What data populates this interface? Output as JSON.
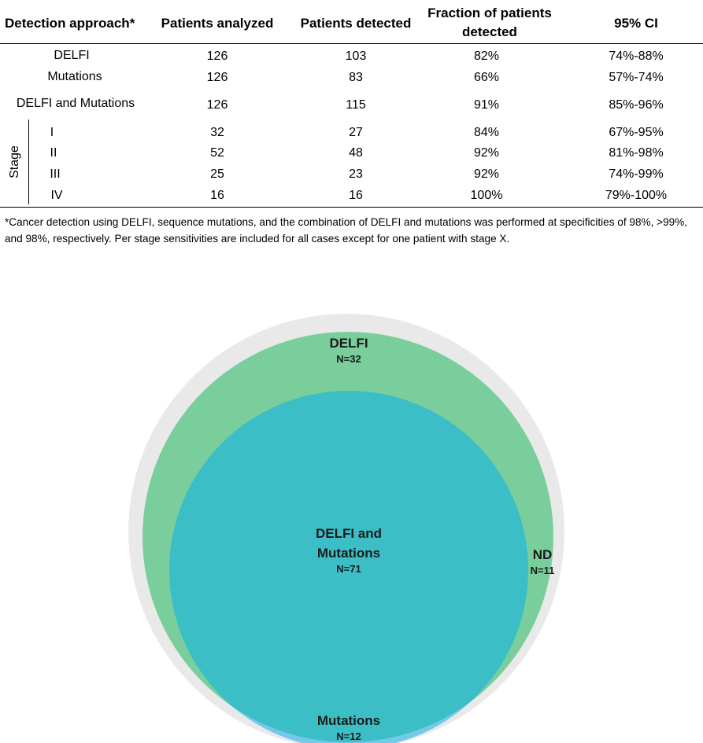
{
  "table": {
    "headers": {
      "approach": "Detection approach*",
      "analyzed": "Patients analyzed",
      "detected": "Patients detected",
      "fraction_line1": "Fraction of patients",
      "fraction_line2": "detected",
      "ci": "95% CI"
    },
    "rows": [
      {
        "label": "DELFI",
        "analyzed": "126",
        "detected": "103",
        "fraction": "82%",
        "ci": "74%-88%"
      },
      {
        "label": "Mutations",
        "analyzed": "126",
        "detected": "83",
        "fraction": "66%",
        "ci": "57%-74%"
      },
      {
        "label": "DELFI and Mutations",
        "analyzed": "126",
        "detected": "115",
        "fraction": "91%",
        "ci": "85%-96%"
      }
    ],
    "stage_label": "Stage",
    "stage_rows": [
      {
        "label": "I",
        "analyzed": "32",
        "detected": "27",
        "fraction": "84%",
        "ci": "67%-95%"
      },
      {
        "label": "II",
        "analyzed": "52",
        "detected": "48",
        "fraction": "92%",
        "ci": "81%-98%"
      },
      {
        "label": "III",
        "analyzed": "25",
        "detected": "23",
        "fraction": "92%",
        "ci": "74%-99%"
      },
      {
        "label": "IV",
        "analyzed": "16",
        "detected": "16",
        "fraction": "100%",
        "ci": "79%-100%"
      }
    ],
    "footnote": "*Cancer detection using DELFI, sequence mutations, and the combination of DELFI and mutations was performed at specificities of 98%, >99%, and 98%, respectively.  Per stage sensitivities are included for all cases except for one patient with stage X."
  },
  "chart_data": {
    "type": "venn",
    "sets": [
      {
        "name": "DELFI",
        "only_label": "DELFI",
        "only_count": "N=32",
        "color": "#79CE9C"
      },
      {
        "name": "Mutations",
        "only_label": "Mutations",
        "only_count": "N=12",
        "color": "#74C9EA"
      }
    ],
    "intersection": {
      "label_line1": "DELFI and",
      "label_line2": "Mutations",
      "count": "N=71",
      "color": "#3BBEC6"
    },
    "not_detected": {
      "label": "ND",
      "count": "N=11",
      "color": "#E9E9E9"
    }
  }
}
